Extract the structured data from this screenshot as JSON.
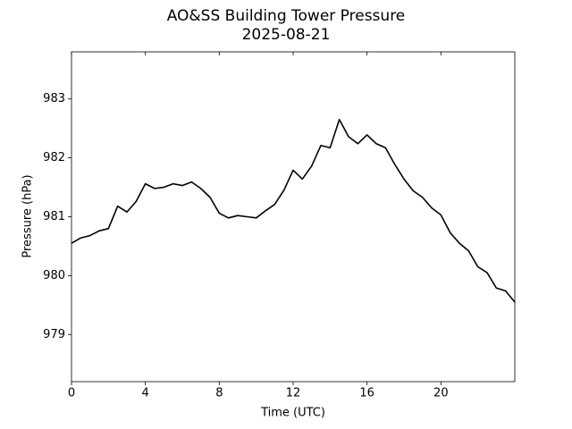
{
  "chart_data": {
    "type": "line",
    "title": "AO&SS Building Tower Pressure",
    "subtitle": "2025-08-21",
    "x_label": "Time (UTC)",
    "y_label": "Pressure (hPa)",
    "xlim": [
      0,
      24
    ],
    "xticks": [
      0,
      4,
      8,
      12,
      16,
      20
    ],
    "ylim": [
      978.2,
      983.8
    ],
    "yticks": [
      979,
      980,
      981,
      982,
      983
    ],
    "grid": false,
    "series": [
      {
        "name": "Pressure",
        "color": "#000000",
        "x": [
          0,
          0.5,
          1,
          1.5,
          2,
          2.5,
          3,
          3.5,
          4,
          4.5,
          5,
          5.5,
          6,
          6.5,
          7,
          7.5,
          8,
          8.5,
          9,
          9.5,
          10,
          10.5,
          11,
          11.5,
          12,
          12.5,
          13,
          13.5,
          14,
          14.5,
          15,
          15.5,
          16,
          16.5,
          17,
          17.5,
          18,
          18.5,
          19,
          19.5,
          20,
          20.5,
          21,
          21.5,
          22,
          22.5,
          23,
          23.5,
          24
        ],
        "values": [
          980.55,
          980.64,
          980.68,
          980.76,
          980.8,
          981.18,
          981.08,
          981.26,
          981.56,
          981.48,
          981.5,
          981.56,
          981.53,
          981.59,
          981.48,
          981.33,
          981.06,
          980.98,
          981.02,
          981.0,
          980.98,
          981.1,
          981.21,
          981.45,
          981.79,
          981.64,
          981.86,
          982.21,
          982.17,
          982.65,
          982.36,
          982.24,
          982.39,
          982.24,
          982.17,
          981.89,
          981.64,
          981.44,
          981.33,
          981.15,
          981.03,
          980.73,
          980.55,
          980.42,
          980.15,
          980.05,
          979.79,
          979.74,
          979.55
        ]
      }
    ]
  }
}
